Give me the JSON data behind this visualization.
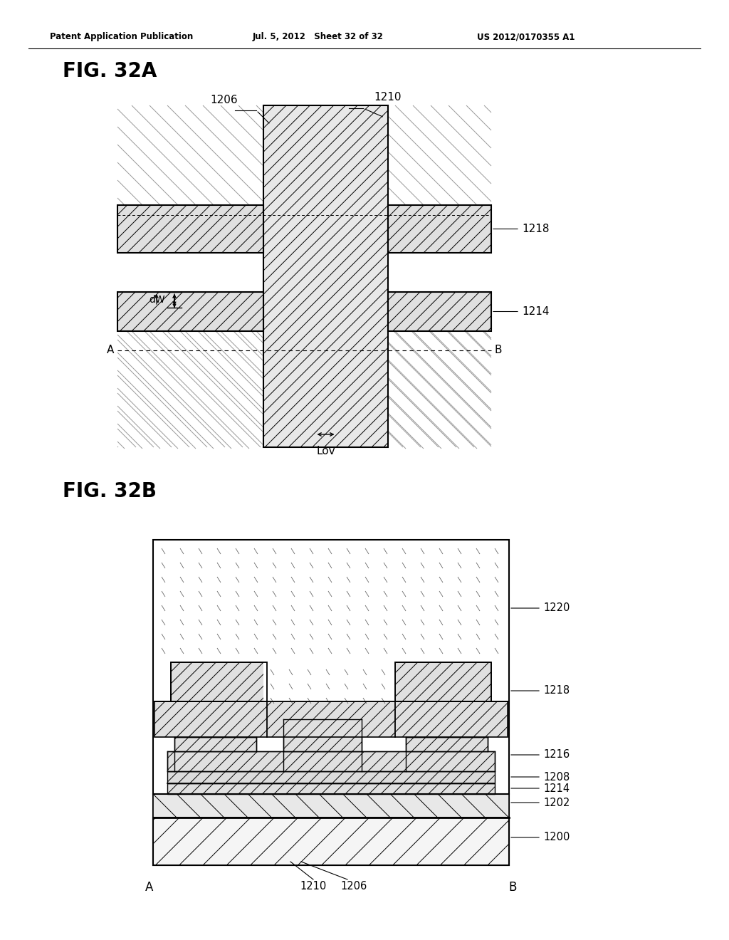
{
  "header_left": "Patent Application Publication",
  "header_mid": "Jul. 5, 2012   Sheet 32 of 32",
  "header_right": "US 2012/0170355 A1",
  "fig_a_label": "FIG. 32A",
  "fig_b_label": "FIG. 32B",
  "bg_color": "#ffffff",
  "line_color": "#000000",
  "label_1200": "1200",
  "label_1202": "1202",
  "label_1206": "1206",
  "label_1208": "1208",
  "label_1210": "1210",
  "label_1214": "1214",
  "label_1216": "1216",
  "label_1218": "1218",
  "label_1220": "1220",
  "label_A": "A",
  "label_B": "B",
  "label_dW": "dW",
  "label_Lov": "Lov"
}
